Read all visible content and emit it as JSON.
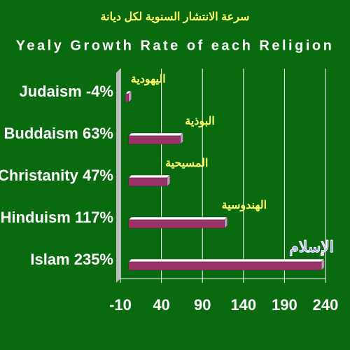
{
  "chart_data": {
    "type": "bar",
    "orientation": "horizontal",
    "subtitle": "سرعة الانتشار السنوية لكل ديانة",
    "title": "Yealy Growth Rate of each Religion",
    "categories": [
      "Judaism -4%",
      "Buddaism 63%",
      "Christanity 47%",
      "Hinduism 117%",
      "Islam 235%"
    ],
    "values": [
      -4,
      63,
      47,
      117,
      235
    ],
    "annotations": [
      "اليهودية",
      "البوذية",
      "المسيحية",
      "الهندوسية",
      "الإسلام"
    ],
    "annotation_colors": [
      "#ffff66",
      "#ffff66",
      "#ffff66",
      "#ffff66",
      "#3333ff"
    ],
    "color": "#993366",
    "xlim": [
      -10,
      240
    ],
    "xticks": [
      -10,
      40,
      90,
      140,
      190,
      240
    ],
    "grid": true
  }
}
